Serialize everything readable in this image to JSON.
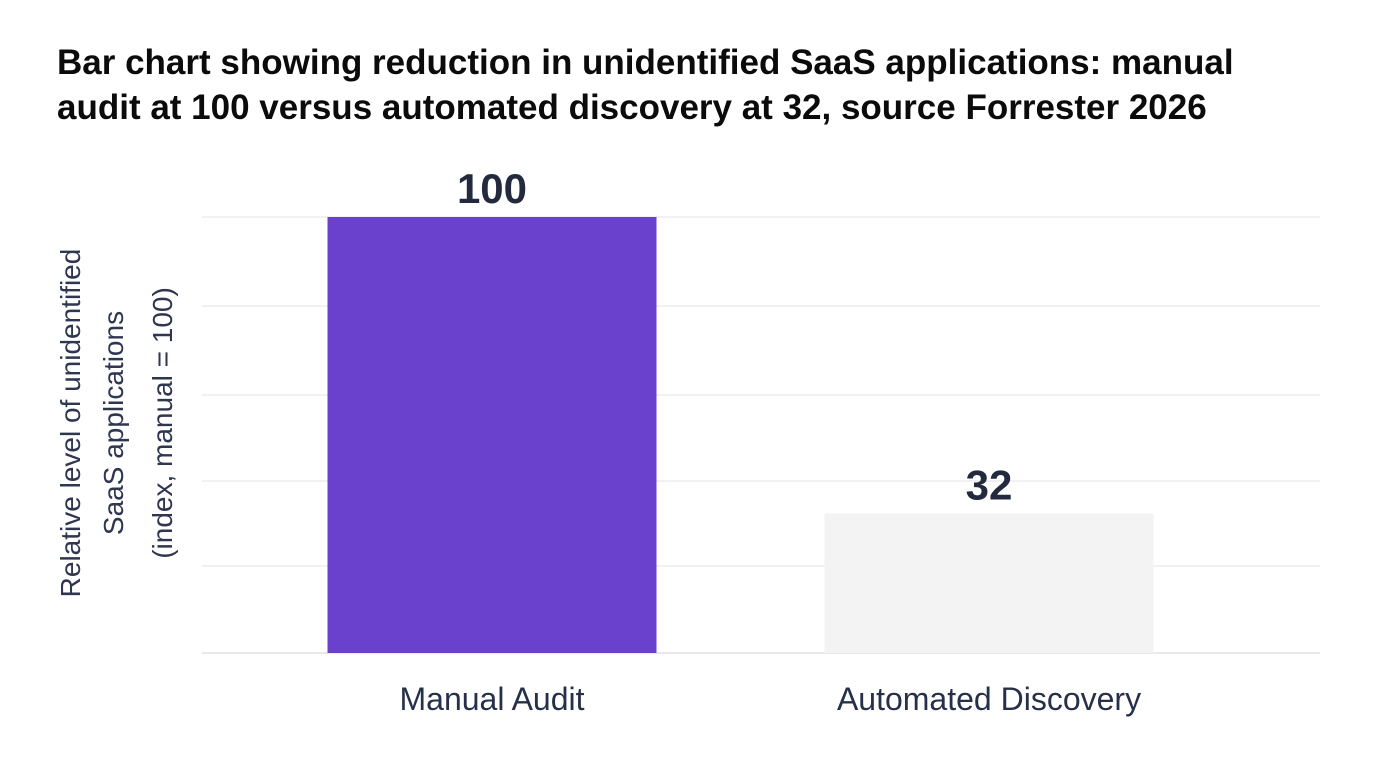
{
  "chart_data": {
    "type": "bar",
    "title": "Bar chart showing reduction in unidentified SaaS applications: manual audit at 100 versus automated discovery at 32, source Forrester 2026",
    "categories": [
      "Manual Audit",
      "Automated Discovery"
    ],
    "values": [
      100,
      32
    ],
    "value_labels": [
      "100",
      "32"
    ],
    "ylabel_lines": [
      "Relative level of unidentified",
      "SaaS applications",
      "(index, manual = 100)"
    ],
    "xlabel": "",
    "ylim": [
      0,
      100
    ],
    "grid": true,
    "bar_colors": [
      "#6941cc",
      "#f3f3f3"
    ]
  }
}
